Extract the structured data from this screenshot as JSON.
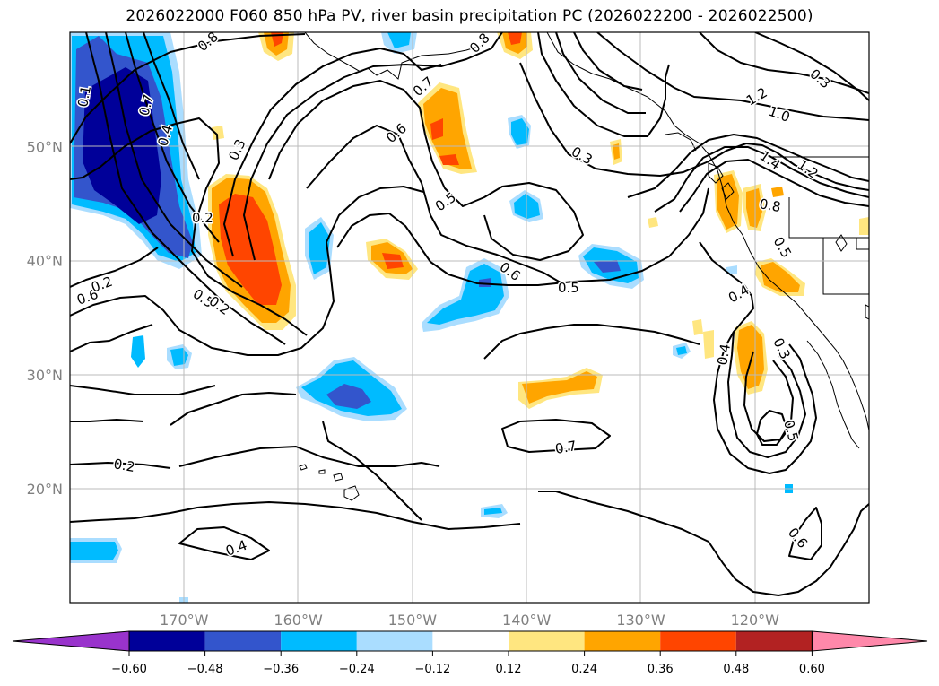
{
  "title": "2026022000 F060 850 hPa PV, river basin precipitation PC (2026022200 - 2026022500)",
  "map": {
    "lat_ticks": [
      {
        "value": 50,
        "label": "50°N"
      },
      {
        "value": 40,
        "label": "40°N"
      },
      {
        "value": 30,
        "label": "30°N"
      },
      {
        "value": 20,
        "label": "20°N"
      }
    ],
    "lon_ticks": [
      {
        "value": -170,
        "label": "170°W"
      },
      {
        "value": -160,
        "label": "160°W"
      },
      {
        "value": -150,
        "label": "150°W"
      },
      {
        "value": -140,
        "label": "140°W"
      },
      {
        "value": -130,
        "label": "130°W"
      },
      {
        "value": -120,
        "label": "120°W"
      }
    ],
    "contour_labels": [
      "0.8",
      "0.6",
      "0.7",
      "0.4",
      "0.1",
      "0.3",
      "0.2",
      "0.5",
      "0.6",
      "0.5",
      "0.2",
      "0.8",
      "0.7",
      "0.6",
      "0.5",
      "0.3",
      "0.3",
      "1.0",
      "1.2",
      "1.2",
      "1.4",
      "0.8",
      "0.5",
      "0.4",
      "0.4",
      "0.3",
      "0.5",
      "0.6",
      "0.7",
      "0.4",
      "0.2",
      "0.2"
    ]
  },
  "colorbar": {
    "colors": [
      "#9933cc",
      "#000099",
      "#3355cc",
      "#00bbff",
      "#aaddff",
      "#ffffff",
      "#ffe680",
      "#ffa500",
      "#ff4500",
      "#b22222",
      "#ff88aa"
    ],
    "tick_labels": [
      "−0.60",
      "−0.48",
      "−0.36",
      "−0.24",
      "−0.12",
      "0.12",
      "0.24",
      "0.36",
      "0.48",
      "0.60"
    ]
  }
}
